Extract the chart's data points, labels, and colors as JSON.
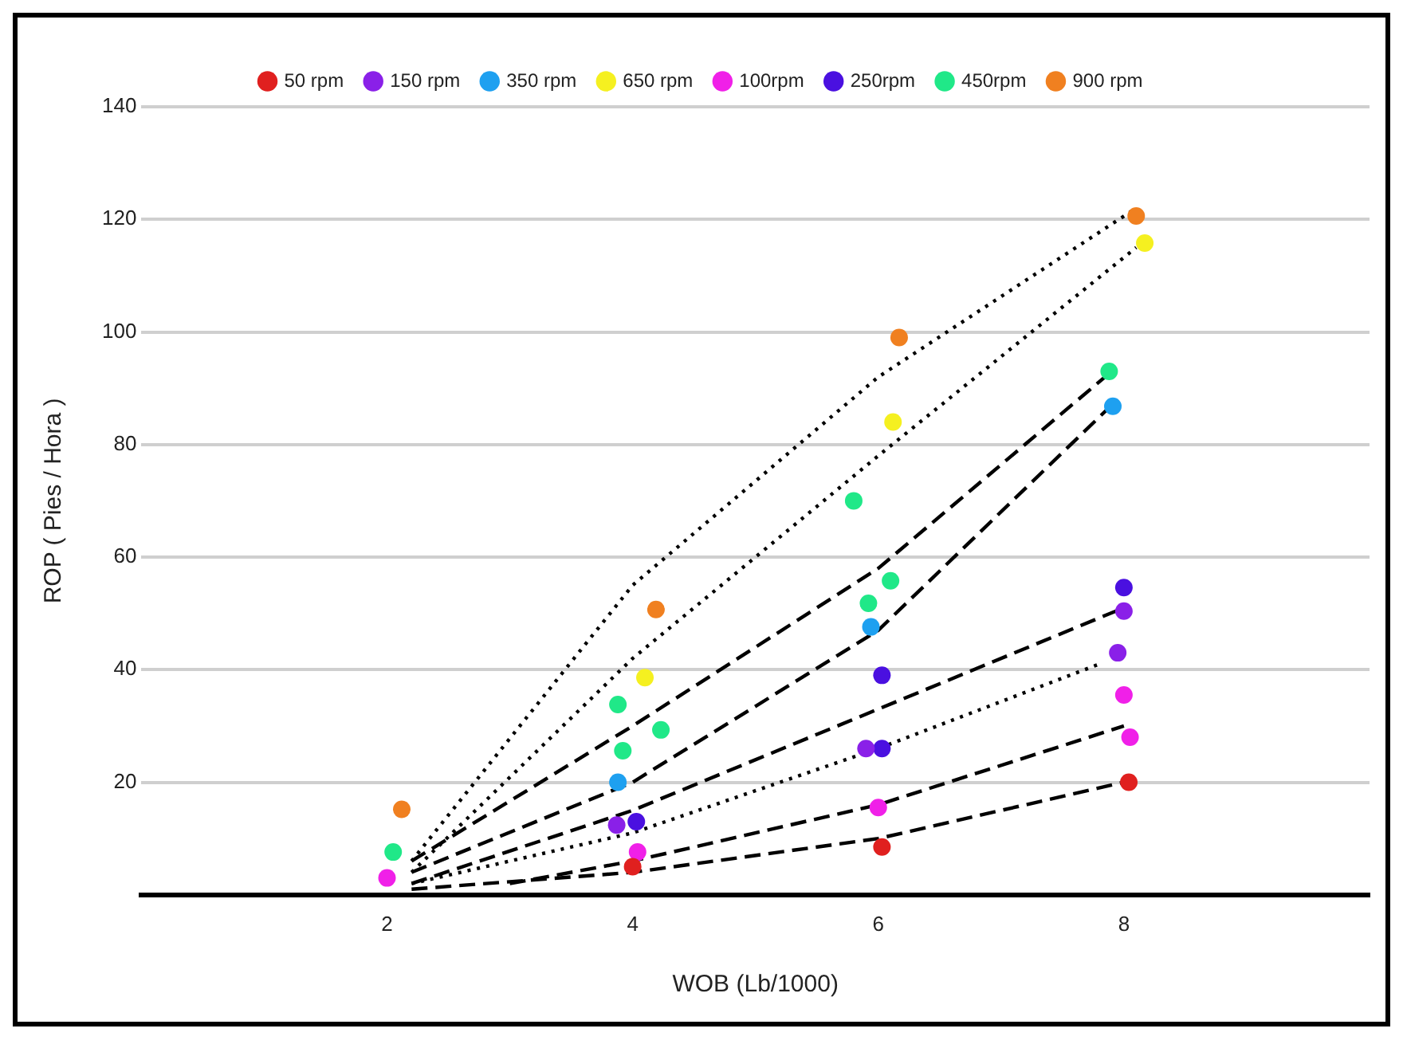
{
  "chart_data": {
    "type": "scatter",
    "xlabel": "WOB (Lb/1000)",
    "ylabel": "ROP ( Pies / Hora )",
    "xlim": [
      0,
      10
    ],
    "xticks": [
      2,
      4,
      6,
      8
    ],
    "ylim": [
      0,
      140
    ],
    "yticks": [
      20,
      40,
      60,
      80,
      100,
      120,
      140
    ],
    "grid": "y",
    "legend": "top",
    "marker": "circle",
    "series": [
      {
        "name": "50 rpm",
        "color": "#e0201f",
        "x": [
          4,
          6.03,
          8.04
        ],
        "values": [
          5,
          8.5,
          20
        ]
      },
      {
        "name": "150 rpm",
        "color": "#8a20e8",
        "x": [
          3.87,
          5.9,
          7.95,
          8
        ],
        "values": [
          12.4,
          26,
          43,
          50.4
        ]
      },
      {
        "name": "350 rpm",
        "color": "#1ea0f0",
        "x": [
          3.88,
          5.94,
          7.91
        ],
        "values": [
          20,
          47.6,
          86.8
        ]
      },
      {
        "name": "650 rpm",
        "color": "#f5f020",
        "x": [
          4.1,
          6.12,
          8.17
        ],
        "values": [
          38.6,
          84,
          115.8
        ]
      },
      {
        "name": "100rpm",
        "color": "#f020e8",
        "x": [
          2,
          4.04,
          6,
          8,
          8.05
        ],
        "values": [
          3,
          7.6,
          15.5,
          35.5,
          28
        ]
      },
      {
        "name": "250rpm",
        "color": "#4a10e0",
        "x": [
          4.03,
          6.03,
          6.03,
          8
        ],
        "values": [
          13,
          26,
          39,
          54.6
        ]
      },
      {
        "name": "450rpm",
        "color": "#20e888",
        "x": [
          2.05,
          3.88,
          3.92,
          4.23,
          5.8,
          5.92,
          6.1,
          7.88
        ],
        "values": [
          7.6,
          33.8,
          25.6,
          29.3,
          70,
          51.8,
          55.8,
          93
        ]
      },
      {
        "name": "900 rpm",
        "color": "#f08020",
        "x": [
          2.12,
          4.19,
          6.17,
          8.1
        ],
        "values": [
          15.2,
          50.7,
          99,
          120.6
        ]
      },
      {
        "type": "line",
        "color": "#000000",
        "line_style": "dotted",
        "marker": "none",
        "x": [
          2.2,
          4,
          6,
          8.1
        ],
        "values": [
          6,
          55,
          92,
          122
        ]
      },
      {
        "type": "line",
        "color": "#000000",
        "line_style": "dotted",
        "marker": "none",
        "x": [
          2.2,
          4,
          6,
          8.1
        ],
        "values": [
          4,
          42,
          78,
          115
        ]
      },
      {
        "type": "line",
        "color": "#000000",
        "line_style": "dashed",
        "marker": "none",
        "x": [
          2.2,
          4,
          6,
          7.9
        ],
        "values": [
          6,
          30,
          58,
          93
        ]
      },
      {
        "type": "line",
        "color": "#000000",
        "line_style": "dashed",
        "marker": "none",
        "x": [
          2.2,
          4,
          6,
          7.9
        ],
        "values": [
          4,
          20,
          47,
          87
        ]
      },
      {
        "type": "line",
        "color": "#000000",
        "line_style": "dashed",
        "marker": "none",
        "x": [
          2.2,
          4,
          6,
          8
        ],
        "values": [
          2,
          15,
          33,
          51
        ]
      },
      {
        "type": "line",
        "color": "#000000",
        "line_style": "dotted",
        "marker": "none",
        "x": [
          2.2,
          4,
          6,
          7.8
        ],
        "values": [
          2,
          11,
          26,
          41
        ]
      },
      {
        "type": "line",
        "color": "#000000",
        "line_style": "dashed",
        "marker": "none",
        "x": [
          3,
          4,
          6,
          8
        ],
        "values": [
          2,
          6,
          16,
          30
        ]
      },
      {
        "type": "line",
        "color": "#000000",
        "line_style": "dashed",
        "marker": "none",
        "x": [
          2.2,
          4,
          6,
          8
        ],
        "values": [
          1,
          4,
          10,
          20
        ]
      }
    ]
  }
}
